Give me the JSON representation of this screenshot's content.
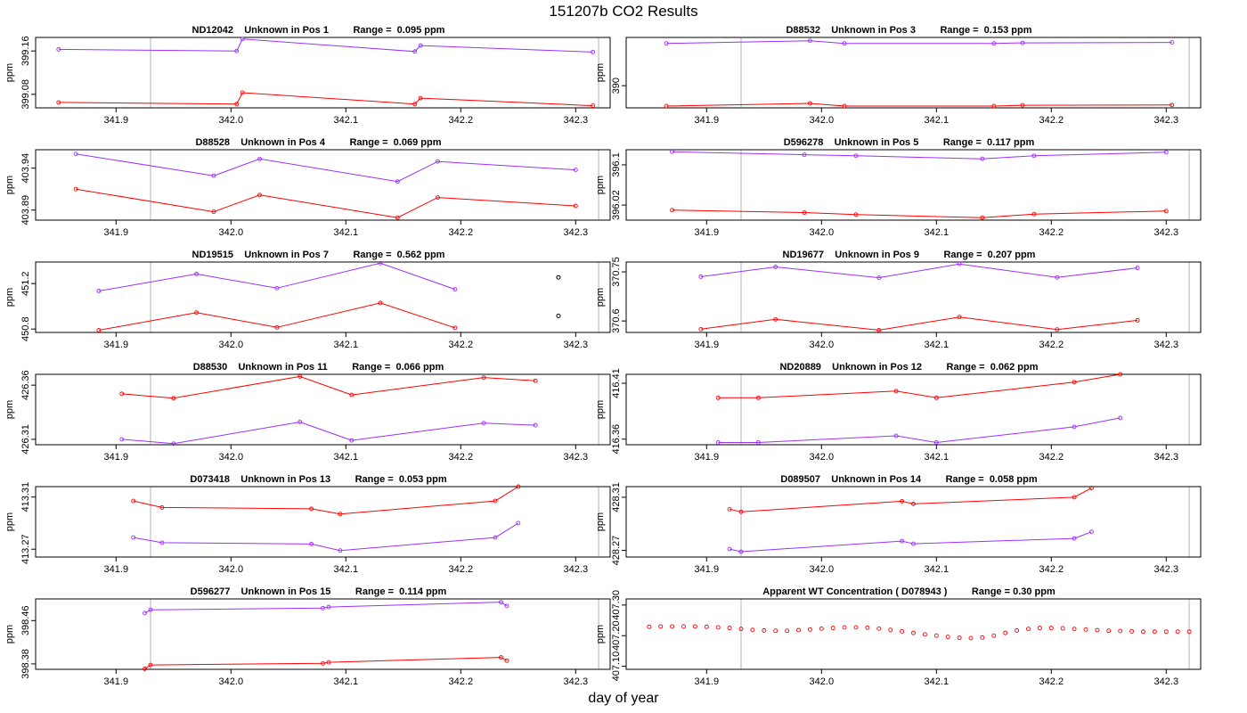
{
  "page": {
    "title": "151207b  CO2 Results",
    "xlabel": "day of year"
  },
  "colors": {
    "series_a": "#9b30ff",
    "series_b": "#ff0000",
    "marker_dark": "#000000",
    "boundary": "#cccccc"
  },
  "chart_data": [
    {
      "type": "line",
      "title": "ND12042    Unknown in Pos 1         Range =  0.095 ppm",
      "ylabel": "ppm",
      "xlim": [
        341.83,
        342.33
      ],
      "ylim": [
        399.055,
        399.185
      ],
      "xticks": [
        341.9,
        342.0,
        342.1,
        342.2,
        342.3
      ],
      "yticks": [
        399.08,
        399.16
      ],
      "boundaries": [
        341.93,
        342.32
      ],
      "series": [
        {
          "name": "purple",
          "color": "#9b30ff",
          "x": [
            341.85,
            342.005,
            342.01,
            342.16,
            342.165,
            342.315
          ],
          "y": [
            399.163,
            399.16,
            399.182,
            399.159,
            399.17,
            399.158
          ]
        },
        {
          "name": "red",
          "color": "#ff0000",
          "x": [
            341.85,
            342.005,
            342.01,
            342.16,
            342.165,
            342.315
          ],
          "y": [
            399.065,
            399.062,
            399.083,
            399.062,
            399.073,
            399.059
          ]
        }
      ],
      "extra_points": []
    },
    {
      "type": "line",
      "title": "D88532    Unknown in Pos 3         Range =  0.153 ppm",
      "ylabel": "ppm",
      "xlim": [
        341.83,
        342.33
      ],
      "ylim": [
        389.915,
        390.185
      ],
      "xticks": [
        341.9,
        342.0,
        342.1,
        342.2,
        342.3
      ],
      "yticks": [
        390.0
      ],
      "boundaries": [
        341.93,
        342.32
      ],
      "series": [
        {
          "name": "purple",
          "color": "#9b30ff",
          "x": [
            341.865,
            341.99,
            342.02,
            342.15,
            342.175,
            342.305
          ],
          "y": [
            390.162,
            390.172,
            390.162,
            390.162,
            390.164,
            390.166
          ]
        },
        {
          "name": "red",
          "color": "#ff0000",
          "x": [
            341.865,
            341.99,
            342.02,
            342.15,
            342.175,
            342.305
          ],
          "y": [
            389.922,
            389.932,
            389.922,
            389.922,
            389.925,
            389.926
          ]
        }
      ],
      "extra_points": []
    },
    {
      "type": "line",
      "title": "D88528    Unknown in Pos 4         Range =  0.069 ppm",
      "ylabel": "ppm",
      "xlim": [
        341.83,
        342.33
      ],
      "ylim": [
        403.878,
        403.962
      ],
      "xticks": [
        341.9,
        342.0,
        342.1,
        342.2,
        342.3
      ],
      "yticks": [
        403.89,
        403.94
      ],
      "boundaries": [
        341.93,
        342.32
      ],
      "series": [
        {
          "name": "purple",
          "color": "#9b30ff",
          "x": [
            341.865,
            341.985,
            342.025,
            342.145,
            342.18,
            342.3
          ],
          "y": [
            403.957,
            403.931,
            403.951,
            403.924,
            403.948,
            403.938
          ]
        },
        {
          "name": "red",
          "color": "#ff0000",
          "x": [
            341.865,
            341.985,
            342.025,
            342.145,
            342.18,
            342.3
          ],
          "y": [
            403.915,
            403.888,
            403.908,
            403.881,
            403.905,
            403.895
          ]
        }
      ],
      "extra_points": []
    },
    {
      "type": "line",
      "title": "D596278    Unknown in Pos 5         Range =  0.117 ppm",
      "ylabel": "ppm",
      "xlim": [
        341.83,
        342.33
      ],
      "ylim": [
        395.99,
        396.13
      ],
      "xticks": [
        341.9,
        342.0,
        342.1,
        342.2,
        342.3
      ],
      "yticks": [
        396.02,
        396.1
      ],
      "boundaries": [
        341.93,
        342.32
      ],
      "series": [
        {
          "name": "purple",
          "color": "#9b30ff",
          "x": [
            341.87,
            341.985,
            342.03,
            342.14,
            342.185,
            342.3
          ],
          "y": [
            396.126,
            396.12,
            396.118,
            396.112,
            396.118,
            396.125
          ]
        },
        {
          "name": "red",
          "color": "#ff0000",
          "x": [
            341.87,
            341.985,
            342.03,
            342.14,
            342.185,
            342.3
          ],
          "y": [
            396.01,
            396.005,
            396.001,
            395.995,
            396.002,
            396.008
          ]
        }
      ],
      "extra_points": []
    },
    {
      "type": "line",
      "title": "ND19515    Unknown in Pos 7         Range =  0.562 ppm",
      "ylabel": "ppm",
      "xlim": [
        341.83,
        342.33
      ],
      "ylim": [
        450.77,
        451.39
      ],
      "xticks": [
        341.9,
        342.0,
        342.1,
        342.2,
        342.3
      ],
      "yticks": [
        450.8,
        451.2
      ],
      "boundaries": [
        341.93,
        342.32
      ],
      "series": [
        {
          "name": "purple",
          "color": "#9b30ff",
          "x": [
            341.885,
            341.97,
            342.04,
            342.13,
            342.195
          ],
          "y": [
            451.135,
            451.285,
            451.16,
            451.38,
            451.15
          ]
        },
        {
          "name": "red",
          "color": "#ff0000",
          "x": [
            341.885,
            341.97,
            342.04,
            342.13,
            342.195
          ],
          "y": [
            450.79,
            450.945,
            450.815,
            451.03,
            450.81
          ]
        }
      ],
      "extra_points": [
        {
          "x": 342.285,
          "y": 451.255,
          "color": "#000000"
        },
        {
          "x": 342.285,
          "y": 450.915,
          "color": "#000000"
        }
      ]
    },
    {
      "type": "line",
      "title": "ND19677    Unknown in Pos 9         Range =  0.207 ppm",
      "ylabel": "ppm",
      "xlim": [
        341.83,
        342.33
      ],
      "ylim": [
        370.565,
        370.78
      ],
      "xticks": [
        341.9,
        342.0,
        342.1,
        342.2,
        342.3
      ],
      "yticks": [
        370.6,
        370.75
      ],
      "boundaries": [
        341.93,
        342.32
      ],
      "series": [
        {
          "name": "purple",
          "color": "#9b30ff",
          "x": [
            341.895,
            341.96,
            342.05,
            342.12,
            342.205,
            342.275
          ],
          "y": [
            370.735,
            370.765,
            370.732,
            370.774,
            370.733,
            370.762
          ]
        },
        {
          "name": "red",
          "color": "#ff0000",
          "x": [
            341.895,
            341.96,
            342.05,
            342.12,
            342.205,
            342.275
          ],
          "y": [
            370.575,
            370.605,
            370.572,
            370.612,
            370.574,
            370.602
          ]
        }
      ],
      "extra_points": []
    },
    {
      "type": "line",
      "title": "D88530    Unknown in Pos 11         Range =  0.066 ppm",
      "ylabel": "ppm",
      "xlim": [
        341.83,
        342.33
      ],
      "ylim": [
        426.305,
        426.37
      ],
      "xticks": [
        341.9,
        342.0,
        342.1,
        342.2,
        342.3
      ],
      "yticks": [
        426.31,
        426.36
      ],
      "boundaries": [
        341.93,
        342.32
      ],
      "series": [
        {
          "name": "red",
          "color": "#ff0000",
          "x": [
            341.905,
            341.95,
            342.06,
            342.105,
            342.22,
            342.265
          ],
          "y": [
            426.352,
            426.348,
            426.368,
            426.351,
            426.367,
            426.364
          ]
        },
        {
          "name": "purple",
          "color": "#9b30ff",
          "x": [
            341.905,
            341.95,
            342.06,
            342.105,
            342.22,
            342.265
          ],
          "y": [
            426.31,
            426.306,
            426.326,
            426.309,
            426.325,
            426.323
          ]
        }
      ],
      "extra_points": []
    },
    {
      "type": "line",
      "title": "ND20889    Unknown in Pos 12         Range =  0.062 ppm",
      "ylabel": "ppm",
      "xlim": [
        341.83,
        342.33
      ],
      "ylim": [
        416.355,
        416.418
      ],
      "xticks": [
        341.9,
        342.0,
        342.1,
        342.2,
        342.3
      ],
      "yticks": [
        416.36,
        416.41
      ],
      "boundaries": [
        341.93,
        342.32
      ],
      "series": [
        {
          "name": "red",
          "color": "#ff0000",
          "x": [
            341.91,
            341.945,
            342.065,
            342.1,
            342.22,
            342.26
          ],
          "y": [
            416.397,
            416.397,
            416.403,
            416.397,
            416.411,
            416.418
          ]
        },
        {
          "name": "purple",
          "color": "#9b30ff",
          "x": [
            341.91,
            341.945,
            342.065,
            342.1,
            342.22,
            342.26
          ],
          "y": [
            416.357,
            416.357,
            416.363,
            416.357,
            416.371,
            416.379
          ]
        }
      ],
      "extra_points": []
    },
    {
      "type": "line",
      "title": "D073418    Unknown in Pos 13         Range =  0.053 ppm",
      "ylabel": "ppm",
      "xlim": [
        341.83,
        342.33
      ],
      "ylim": [
        413.264,
        413.318
      ],
      "xticks": [
        341.9,
        342.0,
        342.1,
        342.2,
        342.3
      ],
      "yticks": [
        413.27,
        413.31
      ],
      "boundaries": [
        341.93,
        342.32
      ],
      "series": [
        {
          "name": "red",
          "color": "#ff0000",
          "x": [
            341.915,
            341.94,
            342.07,
            342.095,
            342.23,
            342.25
          ],
          "y": [
            413.307,
            413.302,
            413.301,
            413.297,
            413.307,
            413.318
          ]
        },
        {
          "name": "purple",
          "color": "#9b30ff",
          "x": [
            341.915,
            341.94,
            342.07,
            342.095,
            342.23,
            342.25
          ],
          "y": [
            413.279,
            413.275,
            413.274,
            413.269,
            413.279,
            413.29
          ]
        }
      ],
      "extra_points": []
    },
    {
      "type": "line",
      "title": "D089507    Unknown in Pos 14         Range =  0.058 ppm",
      "ylabel": "ppm",
      "xlim": [
        341.83,
        342.33
      ],
      "ylim": [
        428.265,
        428.318
      ],
      "xticks": [
        341.9,
        342.0,
        342.1,
        342.2,
        342.3
      ],
      "yticks": [
        428.27,
        428.31
      ],
      "boundaries": [
        341.93,
        342.32
      ],
      "series": [
        {
          "name": "red",
          "color": "#ff0000",
          "x": [
            341.92,
            341.93,
            342.07,
            342.08,
            342.22,
            342.235
          ],
          "y": [
            428.301,
            428.299,
            428.307,
            428.305,
            428.31,
            428.317
          ]
        },
        {
          "name": "purple",
          "color": "#9b30ff",
          "x": [
            341.92,
            341.93,
            342.07,
            342.08,
            342.22,
            342.235
          ],
          "y": [
            428.271,
            428.269,
            428.277,
            428.275,
            428.279,
            428.284
          ]
        }
      ],
      "extra_points": []
    },
    {
      "type": "line",
      "title": "D596277    Unknown in Pos 15         Range =  0.114 ppm",
      "ylabel": "ppm",
      "xlim": [
        341.83,
        342.33
      ],
      "ylim": [
        398.37,
        398.5
      ],
      "xticks": [
        341.9,
        342.0,
        342.1,
        342.2,
        342.3
      ],
      "yticks": [
        398.38,
        398.46
      ],
      "boundaries": [
        341.93,
        342.32
      ],
      "series": [
        {
          "name": "purple",
          "color": "#9b30ff",
          "x": [
            341.925,
            341.93,
            342.08,
            342.085,
            342.235,
            342.24
          ],
          "y": [
            398.474,
            398.48,
            398.483,
            398.485,
            398.494,
            398.487
          ]
        },
        {
          "name": "red",
          "color": "#ff0000",
          "x": [
            341.925,
            341.93,
            342.08,
            342.085,
            342.235,
            342.24
          ],
          "y": [
            398.371,
            398.378,
            398.381,
            398.383,
            398.392,
            398.386
          ]
        }
      ],
      "extra_points": []
    },
    {
      "type": "scatter",
      "title": "Apparent WT Concentration ( D078943 )         Range = 0.30 ppm",
      "ylabel": "ppm",
      "xlim": [
        341.83,
        342.33
      ],
      "ylim": [
        407.09,
        407.32
      ],
      "xticks": [
        341.9,
        342.0,
        342.1,
        342.2,
        342.3
      ],
      "yticks": [
        407.1,
        407.2,
        407.3
      ],
      "yticklabels": [
        "407.10",
        "407.20",
        "407.30"
      ],
      "boundaries": [
        341.93,
        342.32
      ],
      "series": [
        {
          "name": "WT",
          "color": "#ff0000",
          "x": [
            341.85,
            341.86,
            341.87,
            341.88,
            341.89,
            341.9,
            341.91,
            341.92,
            341.93,
            341.94,
            341.95,
            341.96,
            341.97,
            341.98,
            341.99,
            342.0,
            342.01,
            342.02,
            342.03,
            342.04,
            342.05,
            342.06,
            342.07,
            342.08,
            342.09,
            342.1,
            342.11,
            342.12,
            342.13,
            342.14,
            342.15,
            342.16,
            342.17,
            342.18,
            342.19,
            342.2,
            342.21,
            342.22,
            342.23,
            342.24,
            342.25,
            342.26,
            342.27,
            342.28,
            342.29,
            342.3,
            342.31,
            342.32
          ],
          "y": [
            407.229,
            407.23,
            407.23,
            407.23,
            407.23,
            407.229,
            407.227,
            407.225,
            407.222,
            407.219,
            407.217,
            407.216,
            407.216,
            407.218,
            407.22,
            407.223,
            407.225,
            407.227,
            407.227,
            407.226,
            407.223,
            407.219,
            407.214,
            407.209,
            407.204,
            407.2,
            407.196,
            407.193,
            407.192,
            407.194,
            407.2,
            407.209,
            407.217,
            407.222,
            407.225,
            407.225,
            407.224,
            407.222,
            407.22,
            407.218,
            407.216,
            407.215,
            407.214,
            407.213,
            407.213,
            407.213,
            407.213,
            407.213
          ]
        }
      ],
      "extra_points": []
    }
  ]
}
